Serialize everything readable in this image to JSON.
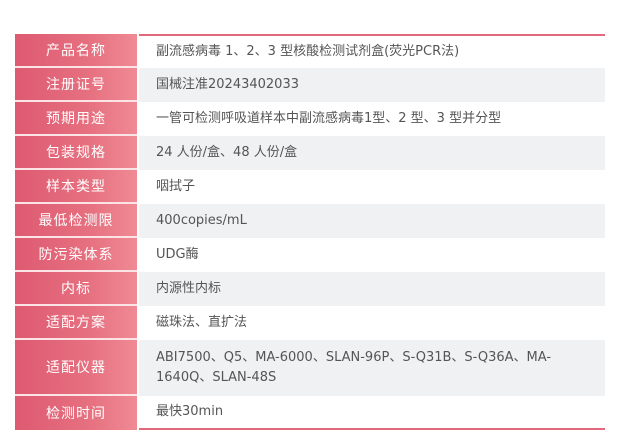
{
  "rows": [
    {
      "label": "产品名称",
      "value": "副流感病毒 1、2、3 型核酸检测试剂盒(荧光PCR法)"
    },
    {
      "label": "注册证号",
      "value": "国械注准20243402033"
    },
    {
      "label": "预期用途",
      "value": "一管可检测呼吸道样本中副流感病毒1型、2 型、3 型并分型"
    },
    {
      "label": "包装规格",
      "value": "24 人份/盒、48 人份/盒"
    },
    {
      "label": "样本类型",
      "value": "咽拭子"
    },
    {
      "label": "最低检测限",
      "value": "400copies/mL"
    },
    {
      "label": "防污染体系",
      "value": "UDG酶"
    },
    {
      "label": "内标",
      "value": "内源性内标"
    },
    {
      "label": "适配方案",
      "value": "磁珠法、直扩法"
    },
    {
      "label": "适配仪器",
      "value": "ABI7500、Q5、MA-6000、SLAN-96P、S-Q31B、S-Q36A、MA-1640Q、SLAN-48S"
    },
    {
      "label": "检测时间",
      "value": "最快30min"
    }
  ],
  "colors": {
    "label_bg": "#e06078",
    "accent_border": "#e3687c",
    "alt_row": "#f0f1f2"
  }
}
